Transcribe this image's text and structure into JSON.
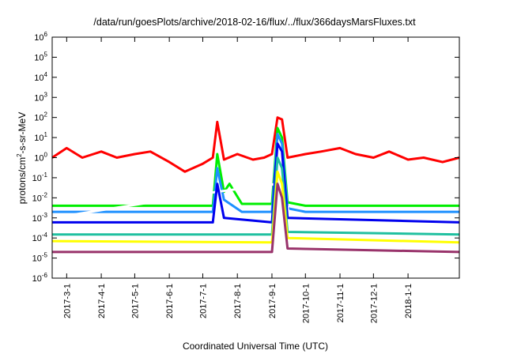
{
  "chart_data": {
    "type": "line",
    "title": "/data/run/goesPlots/archive/2018-02-16/flux/../flux/366daysMarsFluxes.txt",
    "xlabel": "Coordinated Universal Time (UTC)",
    "ylabel": {
      "prefix": "protons/cm",
      "sup": "2",
      "suffix": "-s-sr-MeV"
    },
    "y_scale": "log",
    "ylim": [
      1e-06,
      1000000.0
    ],
    "xlim": [
      "2017-02-16",
      "2018-02-16"
    ],
    "grid": false,
    "legend": "none",
    "x_ticks": [
      {
        "date": "2017-03-01",
        "label": "2017-3-1"
      },
      {
        "date": "2017-04-01",
        "label": "2017-4-1"
      },
      {
        "date": "2017-05-01",
        "label": "2017-5-1"
      },
      {
        "date": "2017-06-01",
        "label": "2017-6-1"
      },
      {
        "date": "2017-07-01",
        "label": "2017-7-1"
      },
      {
        "date": "2017-08-01",
        "label": "2017-8-1"
      },
      {
        "date": "2017-09-01",
        "label": "2017-9-1"
      },
      {
        "date": "2017-10-01",
        "label": "2017-10-1"
      },
      {
        "date": "2017-11-01",
        "label": "2017-11-1"
      },
      {
        "date": "2017-12-01",
        "label": "2017-12-1"
      },
      {
        "date": "2018-01-01",
        "label": "2018-1-1"
      }
    ],
    "y_ticks": [
      {
        "value": 1e-06,
        "base": "10",
        "exp": "-6"
      },
      {
        "value": 1e-05,
        "base": "10",
        "exp": "-5"
      },
      {
        "value": 0.0001,
        "base": "10",
        "exp": "-4"
      },
      {
        "value": 0.001,
        "base": "10",
        "exp": "-3"
      },
      {
        "value": 0.01,
        "base": "10",
        "exp": "-2"
      },
      {
        "value": 0.1,
        "base": "10",
        "exp": "-1"
      },
      {
        "value": 1.0,
        "base": "10",
        "exp": "0"
      },
      {
        "value": 10.0,
        "base": "10",
        "exp": "1"
      },
      {
        "value": 100.0,
        "base": "10",
        "exp": "2"
      },
      {
        "value": 1000.0,
        "base": "10",
        "exp": "3"
      },
      {
        "value": 10000.0,
        "base": "10",
        "exp": "4"
      },
      {
        "value": 100000.0,
        "base": "10",
        "exp": "5"
      },
      {
        "value": 1000000.0,
        "base": "10",
        "exp": "6"
      }
    ],
    "series": [
      {
        "color": "#ff0000",
        "x": [
          "2017-02-16",
          "2017-03-01",
          "2017-03-15",
          "2017-04-01",
          "2017-04-15",
          "2017-05-01",
          "2017-05-15",
          "2017-06-01",
          "2017-06-15",
          "2017-07-01",
          "2017-07-10",
          "2017-07-14",
          "2017-07-20",
          "2017-08-01",
          "2017-08-15",
          "2017-08-25",
          "2017-09-01",
          "2017-09-06",
          "2017-09-10",
          "2017-09-15",
          "2017-10-01",
          "2017-10-15",
          "2017-11-01",
          "2017-11-15",
          "2017-12-01",
          "2017-12-15",
          "2018-01-01",
          "2018-01-15",
          "2018-02-01",
          "2018-02-16"
        ],
        "y": [
          1.0,
          3.0,
          1.0,
          2.0,
          1.0,
          1.5,
          2.0,
          0.6,
          0.2,
          0.5,
          1.0,
          60,
          0.8,
          1.5,
          0.8,
          1.0,
          1.5,
          100,
          80,
          1.0,
          1.5,
          2.0,
          3.0,
          1.5,
          1.0,
          2.0,
          0.8,
          1.0,
          0.6,
          1.0
        ]
      },
      {
        "color": "#00ee00",
        "x": [
          "2017-02-16",
          "2017-06-01",
          "2017-07-10",
          "2017-07-14",
          "2017-07-20",
          "2017-07-25",
          "2017-08-05",
          "2017-09-01",
          "2017-09-06",
          "2017-09-10",
          "2017-09-15",
          "2017-10-01",
          "2018-02-16"
        ],
        "y": [
          0.004,
          0.004,
          0.004,
          1.5,
          0.02,
          0.05,
          0.005,
          0.005,
          30,
          10,
          0.006,
          0.004,
          0.004
        ]
      },
      {
        "color": "#1e90ff",
        "x": [
          "2017-02-16",
          "2017-06-01",
          "2017-07-10",
          "2017-07-14",
          "2017-07-20",
          "2017-08-05",
          "2017-09-01",
          "2017-09-06",
          "2017-09-10",
          "2017-09-15",
          "2017-10-01",
          "2018-02-16"
        ],
        "y": [
          0.002,
          0.002,
          0.002,
          0.3,
          0.008,
          0.002,
          0.002,
          15,
          5,
          0.003,
          0.002,
          0.002
        ]
      },
      {
        "color": "#ffffff",
        "x": [
          "2017-02-16",
          "2017-07-14",
          "2017-09-06",
          "2017-09-12",
          "2017-09-18",
          "2018-02-16"
        ],
        "y": [
          0.001,
          0.02,
          0.05,
          0.01,
          0.001,
          0.001
        ]
      },
      {
        "color": "#0000ee",
        "x": [
          "2017-02-16",
          "2017-07-10",
          "2017-07-14",
          "2017-07-20",
          "2017-09-01",
          "2017-09-06",
          "2017-09-10",
          "2017-09-15",
          "2018-02-16"
        ],
        "y": [
          0.0006,
          0.0006,
          0.05,
          0.001,
          0.0006,
          5,
          2,
          0.001,
          0.0006
        ]
      },
      {
        "color": "#20c0a0",
        "x": [
          "2017-02-16",
          "2017-09-01",
          "2017-09-06",
          "2017-09-10",
          "2017-09-15",
          "2018-02-16"
        ],
        "y": [
          0.00015,
          0.00015,
          1,
          0.3,
          0.0002,
          0.00015
        ]
      },
      {
        "color": "#ffff00",
        "x": [
          "2017-02-16",
          "2017-09-01",
          "2017-09-06",
          "2017-09-10",
          "2017-09-15",
          "2018-02-16"
        ],
        "y": [
          7e-05,
          6e-05,
          0.2,
          0.05,
          0.0001,
          6e-05
        ]
      },
      {
        "color": "#99336b",
        "x": [
          "2017-02-16",
          "2017-09-01",
          "2017-09-06",
          "2017-09-10",
          "2017-09-15",
          "2018-02-16"
        ],
        "y": [
          2e-05,
          2e-05,
          0.05,
          0.01,
          3e-05,
          2e-05
        ]
      }
    ]
  }
}
